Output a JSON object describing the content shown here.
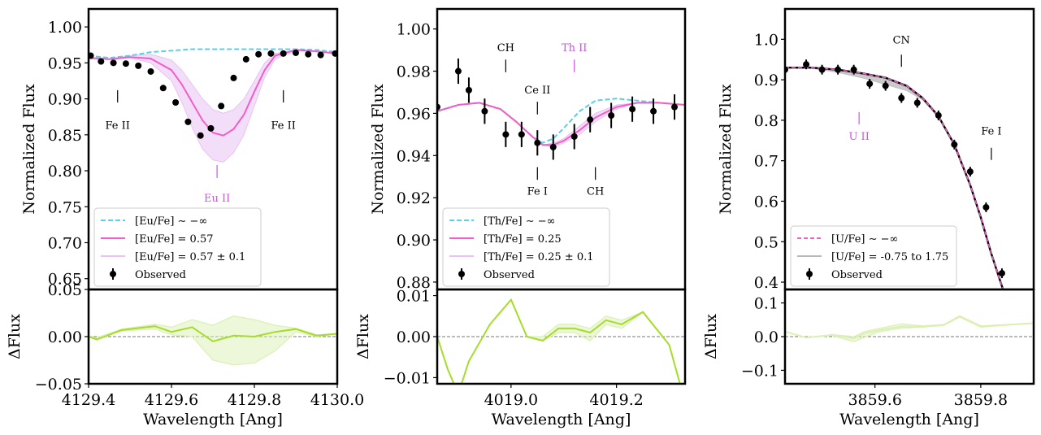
{
  "figure_colors": {
    "null": "#5bcfe8",
    "best": "#f25ec8",
    "band": "#e9c2f4",
    "resid": "#a6dc2a",
    "resid_band": "#dbf0b4",
    "obs": "#000000",
    "special": "#c855e0",
    "u_range": "#b8b8b8",
    "u_null": "#f25ec8"
  },
  "chart_data": [
    {
      "type": "line",
      "title": "",
      "xlabel": "Wavelength [Ang]",
      "ylabel": "Normalized Flux",
      "resid_ylabel": "ΔFlux",
      "xlim": [
        4129.4,
        4130.0
      ],
      "ylim": [
        0.635,
        1.025
      ],
      "resid_ylim": [
        -0.05,
        0.05
      ],
      "xticks": [
        4129.4,
        4129.6,
        4129.8,
        4130.0
      ],
      "xtick_labels": [
        "4129.4",
        "4129.6",
        "4129.8",
        "4130.0"
      ],
      "yticks": [
        0.65,
        0.7,
        0.75,
        0.8,
        0.85,
        0.9,
        0.95,
        1.0
      ],
      "ytick_labels": [
        "0.65",
        "0.70",
        "0.75",
        "0.80",
        "0.85",
        "0.90",
        "0.95",
        "1.00"
      ],
      "resid_yticks": [
        -0.05,
        0.0,
        0.05
      ],
      "resid_ytick_labels": [
        "−0.05",
        "0.00",
        "0.05"
      ],
      "model_x": [
        4129.4,
        4129.45,
        4129.5,
        4129.55,
        4129.6,
        4129.625,
        4129.65,
        4129.675,
        4129.7,
        4129.725,
        4129.75,
        4129.775,
        4129.8,
        4129.825,
        4129.85,
        4129.9,
        4129.95,
        4130.0
      ],
      "series": [
        {
          "name": "[Eu/Fe] ~ −∞",
          "role": "null",
          "values": [
            0.96,
            0.957,
            0.96,
            0.965,
            0.967,
            0.968,
            0.969,
            0.969,
            0.969,
            0.969,
            0.969,
            0.969,
            0.969,
            0.969,
            0.969,
            0.969,
            0.968,
            0.965
          ]
        },
        {
          "name": "[Eu/Fe] = 0.57",
          "role": "best",
          "values": [
            0.957,
            0.955,
            0.958,
            0.956,
            0.94,
            0.92,
            0.895,
            0.87,
            0.853,
            0.849,
            0.858,
            0.878,
            0.91,
            0.94,
            0.96,
            0.968,
            0.966,
            0.963
          ]
        },
        {
          "name": "band_lo",
          "role": "band_lo",
          "values": [
            0.957,
            0.955,
            0.957,
            0.95,
            0.925,
            0.895,
            0.86,
            0.83,
            0.815,
            0.812,
            0.825,
            0.85,
            0.89,
            0.93,
            0.955,
            0.967,
            0.966,
            0.963
          ]
        },
        {
          "name": "band_hi",
          "role": "band_hi",
          "values": [
            0.958,
            0.956,
            0.96,
            0.962,
            0.954,
            0.94,
            0.92,
            0.9,
            0.885,
            0.88,
            0.885,
            0.9,
            0.925,
            0.95,
            0.963,
            0.968,
            0.966,
            0.963
          ]
        }
      ],
      "band_label": "[Eu/Fe] = 0.57 ± 0.1",
      "observed": {
        "name": "Observed",
        "x": [
          4129.405,
          4129.43,
          4129.46,
          4129.49,
          4129.52,
          4129.55,
          4129.58,
          4129.61,
          4129.64,
          4129.67,
          4129.695,
          4129.72,
          4129.75,
          4129.78,
          4129.81,
          4129.84,
          4129.87,
          4129.9,
          4129.93,
          4129.96,
          4129.995
        ],
        "y": [
          0.96,
          0.952,
          0.95,
          0.949,
          0.946,
          0.938,
          0.915,
          0.895,
          0.868,
          0.849,
          0.859,
          0.89,
          0.929,
          0.955,
          0.962,
          0.963,
          0.963,
          0.964,
          0.962,
          0.961,
          0.963
        ],
        "yerr": [
          0.003,
          0.003,
          0.003,
          0.003,
          0.003,
          0.003,
          0.003,
          0.003,
          0.003,
          0.003,
          0.003,
          0.003,
          0.003,
          0.003,
          0.003,
          0.003,
          0.003,
          0.003,
          0.003,
          0.003,
          0.003
        ]
      },
      "residual": {
        "x": [
          4129.4,
          4129.42,
          4129.48,
          4129.56,
          4129.6,
          4129.65,
          4129.7,
          4129.75,
          4129.8,
          4129.85,
          4129.9,
          4129.95,
          4130.0
        ],
        "y": [
          0.0,
          -0.003,
          0.007,
          0.011,
          0.005,
          0.01,
          -0.005,
          0.001,
          0.0,
          0.005,
          0.008,
          0.001,
          0.003
        ],
        "band_lo": [
          0.0,
          -0.002,
          0.006,
          0.008,
          0.002,
          0.0,
          -0.025,
          -0.03,
          -0.028,
          -0.015,
          0.005,
          0.0,
          0.003
        ],
        "band_hi": [
          0.0,
          -0.001,
          0.008,
          0.013,
          0.01,
          0.018,
          0.012,
          0.022,
          0.018,
          0.012,
          0.009,
          0.002,
          0.003
        ]
      },
      "annotations": [
        {
          "text": "Fe II",
          "x": 4129.47,
          "label_y": 0.858,
          "mark_y0": 0.895,
          "mark_y1": 0.912,
          "special": false
        },
        {
          "text": "Fe II",
          "x": 4129.87,
          "label_y": 0.858,
          "mark_y0": 0.895,
          "mark_y1": 0.912,
          "special": false
        },
        {
          "text": "Eu II",
          "x": 4129.71,
          "label_y": 0.757,
          "mark_y0": 0.79,
          "mark_y1": 0.808,
          "special": true
        }
      ],
      "legend": [
        {
          "label": "[Eu/Fe]  ∼ −∞",
          "style": "null"
        },
        {
          "label": "[Eu/Fe] = 0.57",
          "style": "best"
        },
        {
          "label": "[Eu/Fe] = 0.57 ± 0.1",
          "style": "band"
        },
        {
          "label": "Observed",
          "style": "obs"
        }
      ],
      "legend_position": "lower-left"
    },
    {
      "type": "line",
      "title": "",
      "xlabel": "Wavelength [Ang]",
      "ylabel": "Normalized Flux",
      "resid_ylabel": "ΔFlux",
      "xlim": [
        4018.86,
        4019.33
      ],
      "ylim": [
        0.8765,
        1.0095
      ],
      "resid_ylim": [
        -0.0115,
        0.0115
      ],
      "xticks": [
        4019.0,
        4019.2
      ],
      "xtick_labels": [
        "4019.0",
        "4019.2"
      ],
      "yticks": [
        0.88,
        0.9,
        0.92,
        0.94,
        0.96,
        0.98,
        1.0
      ],
      "ytick_labels": [
        "0.88",
        "0.90",
        "0.92",
        "0.94",
        "0.96",
        "0.98",
        "1.00"
      ],
      "resid_yticks": [
        -0.01,
        0.0,
        0.01
      ],
      "resid_ytick_labels": [
        "−0.01",
        "0.00",
        "0.01"
      ],
      "model_x": [
        4018.86,
        4018.9,
        4018.94,
        4018.98,
        4019.01,
        4019.04,
        4019.06,
        4019.08,
        4019.1,
        4019.13,
        4019.16,
        4019.2,
        4019.24,
        4019.28,
        4019.33
      ],
      "series": [
        {
          "name": "[Th/Fe] ~ −∞",
          "role": "null",
          "values": [
            0.961,
            0.964,
            0.965,
            0.962,
            0.956,
            0.949,
            0.946,
            0.948,
            0.953,
            0.961,
            0.966,
            0.967,
            0.966,
            0.965,
            0.964
          ]
        },
        {
          "name": "[Th/Fe] = 0.25",
          "role": "best",
          "values": [
            0.961,
            0.964,
            0.965,
            0.962,
            0.956,
            0.949,
            0.945,
            0.945,
            0.947,
            0.952,
            0.958,
            0.963,
            0.965,
            0.965,
            0.964
          ]
        },
        {
          "name": "band_lo",
          "role": "band_lo",
          "values": [
            0.961,
            0.964,
            0.965,
            0.962,
            0.956,
            0.949,
            0.945,
            0.944,
            0.946,
            0.95,
            0.956,
            0.962,
            0.965,
            0.965,
            0.964
          ]
        },
        {
          "name": "band_hi",
          "role": "band_hi",
          "values": [
            0.961,
            0.964,
            0.965,
            0.962,
            0.956,
            0.949,
            0.945,
            0.946,
            0.948,
            0.954,
            0.96,
            0.964,
            0.965,
            0.965,
            0.964
          ]
        }
      ],
      "band_label": "[Th/Fe] = 0.25 ± 0.1",
      "observed": {
        "name": "Observed",
        "x": [
          4018.86,
          4018.9,
          4018.92,
          4018.95,
          4018.99,
          4019.02,
          4019.05,
          4019.08,
          4019.12,
          4019.15,
          4019.19,
          4019.23,
          4019.27,
          4019.31
        ],
        "y": [
          0.963,
          0.98,
          0.971,
          0.961,
          0.95,
          0.95,
          0.946,
          0.944,
          0.949,
          0.957,
          0.959,
          0.962,
          0.961,
          0.963
        ],
        "yerr": [
          0.006,
          0.006,
          0.006,
          0.006,
          0.006,
          0.006,
          0.006,
          0.006,
          0.006,
          0.006,
          0.006,
          0.006,
          0.006,
          0.006
        ]
      },
      "residual": {
        "x": [
          4018.86,
          4018.88,
          4018.9,
          4018.92,
          4018.96,
          4019.0,
          4019.03,
          4019.06,
          4019.09,
          4019.12,
          4019.15,
          4019.18,
          4019.21,
          4019.25,
          4019.3,
          4019.33
        ],
        "y": [
          0.0,
          -0.008,
          -0.014,
          -0.006,
          0.003,
          0.009,
          0.0,
          -0.001,
          0.002,
          0.002,
          0.001,
          0.004,
          0.003,
          0.006,
          -0.002,
          -0.016
        ],
        "band_lo": [
          0.0,
          -0.008,
          -0.014,
          -0.006,
          0.003,
          0.009,
          0.0,
          -0.001,
          0.001,
          0.001,
          -0.001,
          0.003,
          0.002,
          0.006,
          -0.002,
          -0.016
        ],
        "band_hi": [
          0.0,
          -0.008,
          -0.014,
          -0.006,
          0.003,
          0.009,
          0.0,
          0.0,
          0.003,
          0.003,
          0.002,
          0.005,
          0.004,
          0.006,
          -0.002,
          -0.016
        ]
      },
      "annotations": [
        {
          "text": "CH",
          "x": 4018.99,
          "label_y": 0.9895,
          "mark_y0": 0.9795,
          "mark_y1": 0.9855,
          "special": false
        },
        {
          "text": "Th II",
          "x": 4019.12,
          "label_y": 0.9895,
          "mark_y0": 0.9795,
          "mark_y1": 0.9855,
          "special": true
        },
        {
          "text": "Ce II",
          "x": 4019.05,
          "label_y": 0.9695,
          "mark_y0": 0.9595,
          "mark_y1": 0.9655,
          "special": false
        },
        {
          "text": "Fe I",
          "x": 4019.05,
          "label_y": 0.9215,
          "mark_y0": 0.9285,
          "mark_y1": 0.9345,
          "special": false
        },
        {
          "text": "CH",
          "x": 4019.16,
          "label_y": 0.9215,
          "mark_y0": 0.9285,
          "mark_y1": 0.9345,
          "special": false
        }
      ],
      "legend": [
        {
          "label": "[Th/Fe]  ∼ −∞",
          "style": "null"
        },
        {
          "label": "[Th/Fe] = 0.25",
          "style": "best"
        },
        {
          "label": "[Th/Fe] = 0.25 ± 0.1",
          "style": "band"
        },
        {
          "label": "Observed",
          "style": "obs"
        }
      ],
      "legend_position": "lower-left"
    },
    {
      "type": "line",
      "title": "",
      "xlabel": "Wavelength [Ang]",
      "ylabel": "Normalized Flux",
      "resid_ylabel": "ΔFlux",
      "xlim": [
        3859.43,
        3859.9
      ],
      "ylim": [
        0.382,
        1.075
      ],
      "resid_ylim": [
        -0.14,
        0.14
      ],
      "xticks": [
        3859.6,
        3859.8
      ],
      "xtick_labels": [
        "3859.6",
        "3859.8"
      ],
      "yticks": [
        0.4,
        0.5,
        0.6,
        0.7,
        0.8,
        0.9,
        1.0
      ],
      "ytick_labels": [
        "0.4",
        "0.5",
        "0.6",
        "0.7",
        "0.8",
        "0.9",
        "1.0"
      ],
      "resid_yticks": [
        -0.1,
        0.0,
        0.1
      ],
      "resid_ytick_labels": [
        "−0.1",
        "0.0",
        "0.1"
      ],
      "model_x": [
        3859.43,
        3859.48,
        3859.53,
        3859.58,
        3859.62,
        3859.66,
        3859.69,
        3859.72,
        3859.75,
        3859.78,
        3859.8,
        3859.82,
        3859.845
      ],
      "series": [
        {
          "name": "[U/Fe] ~ −∞",
          "role": "null",
          "values": [
            0.93,
            0.93,
            0.925,
            0.915,
            0.905,
            0.885,
            0.855,
            0.81,
            0.74,
            0.64,
            0.56,
            0.47,
            0.37
          ]
        },
        {
          "name": "band_lo",
          "role": "band_lo",
          "values": [
            0.93,
            0.928,
            0.918,
            0.903,
            0.888,
            0.873,
            0.85,
            0.807,
            0.737,
            0.637,
            0.557,
            0.467,
            0.367
          ]
        },
        {
          "name": "band_hi",
          "role": "band_hi",
          "values": [
            0.931,
            0.931,
            0.926,
            0.917,
            0.907,
            0.887,
            0.857,
            0.812,
            0.742,
            0.642,
            0.562,
            0.472,
            0.372
          ]
        }
      ],
      "band_label": "[U/Fe] = -0.75 to 1.75",
      "observed": {
        "name": "Observed",
        "x": [
          3859.43,
          3859.47,
          3859.5,
          3859.53,
          3859.56,
          3859.59,
          3859.62,
          3859.65,
          3859.68,
          3859.72,
          3859.75,
          3859.78,
          3859.81,
          3859.84
        ],
        "y": [
          0.925,
          0.938,
          0.925,
          0.925,
          0.925,
          0.89,
          0.885,
          0.855,
          0.843,
          0.812,
          0.74,
          0.673,
          0.585,
          0.422
        ],
        "yerr": [
          0.012,
          0.012,
          0.012,
          0.012,
          0.012,
          0.012,
          0.012,
          0.012,
          0.012,
          0.012,
          0.012,
          0.012,
          0.012,
          0.012
        ]
      },
      "residual": {
        "x": [
          3859.43,
          3859.47,
          3859.52,
          3859.56,
          3859.58,
          3859.61,
          3859.65,
          3859.69,
          3859.73,
          3859.76,
          3859.8,
          3859.85,
          3859.9
        ],
        "y": [
          0.015,
          -0.003,
          0.005,
          -0.005,
          0.01,
          0.02,
          0.03,
          0.03,
          0.035,
          0.06,
          0.03,
          0.035,
          0.04
        ],
        "band_lo": [
          0.015,
          -0.003,
          0.003,
          -0.015,
          -0.002,
          0.015,
          0.025,
          0.028,
          0.033,
          0.058,
          0.028,
          0.034,
          0.04
        ],
        "band_hi": [
          0.015,
          -0.003,
          0.006,
          0.0,
          0.015,
          0.025,
          0.038,
          0.032,
          0.036,
          0.062,
          0.032,
          0.036,
          0.04
        ]
      },
      "annotations": [
        {
          "text": "CN",
          "x": 3859.65,
          "label_y": 0.99,
          "mark_y0": 0.932,
          "mark_y1": 0.962,
          "special": false
        },
        {
          "text": "U II",
          "x": 3859.57,
          "label_y": 0.752,
          "mark_y0": 0.79,
          "mark_y1": 0.82,
          "special": true
        },
        {
          "text": "Fe I",
          "x": 3859.82,
          "label_y": 0.765,
          "mark_y0": 0.702,
          "mark_y1": 0.732,
          "special": false
        }
      ],
      "legend": [
        {
          "label": "[U/Fe]  ∼ −∞",
          "style": "unull"
        },
        {
          "label": "[U/Fe] = -0.75 to 1.75",
          "style": "urange"
        },
        {
          "label": "Observed",
          "style": "obs"
        }
      ],
      "legend_position": "lower-left"
    }
  ]
}
